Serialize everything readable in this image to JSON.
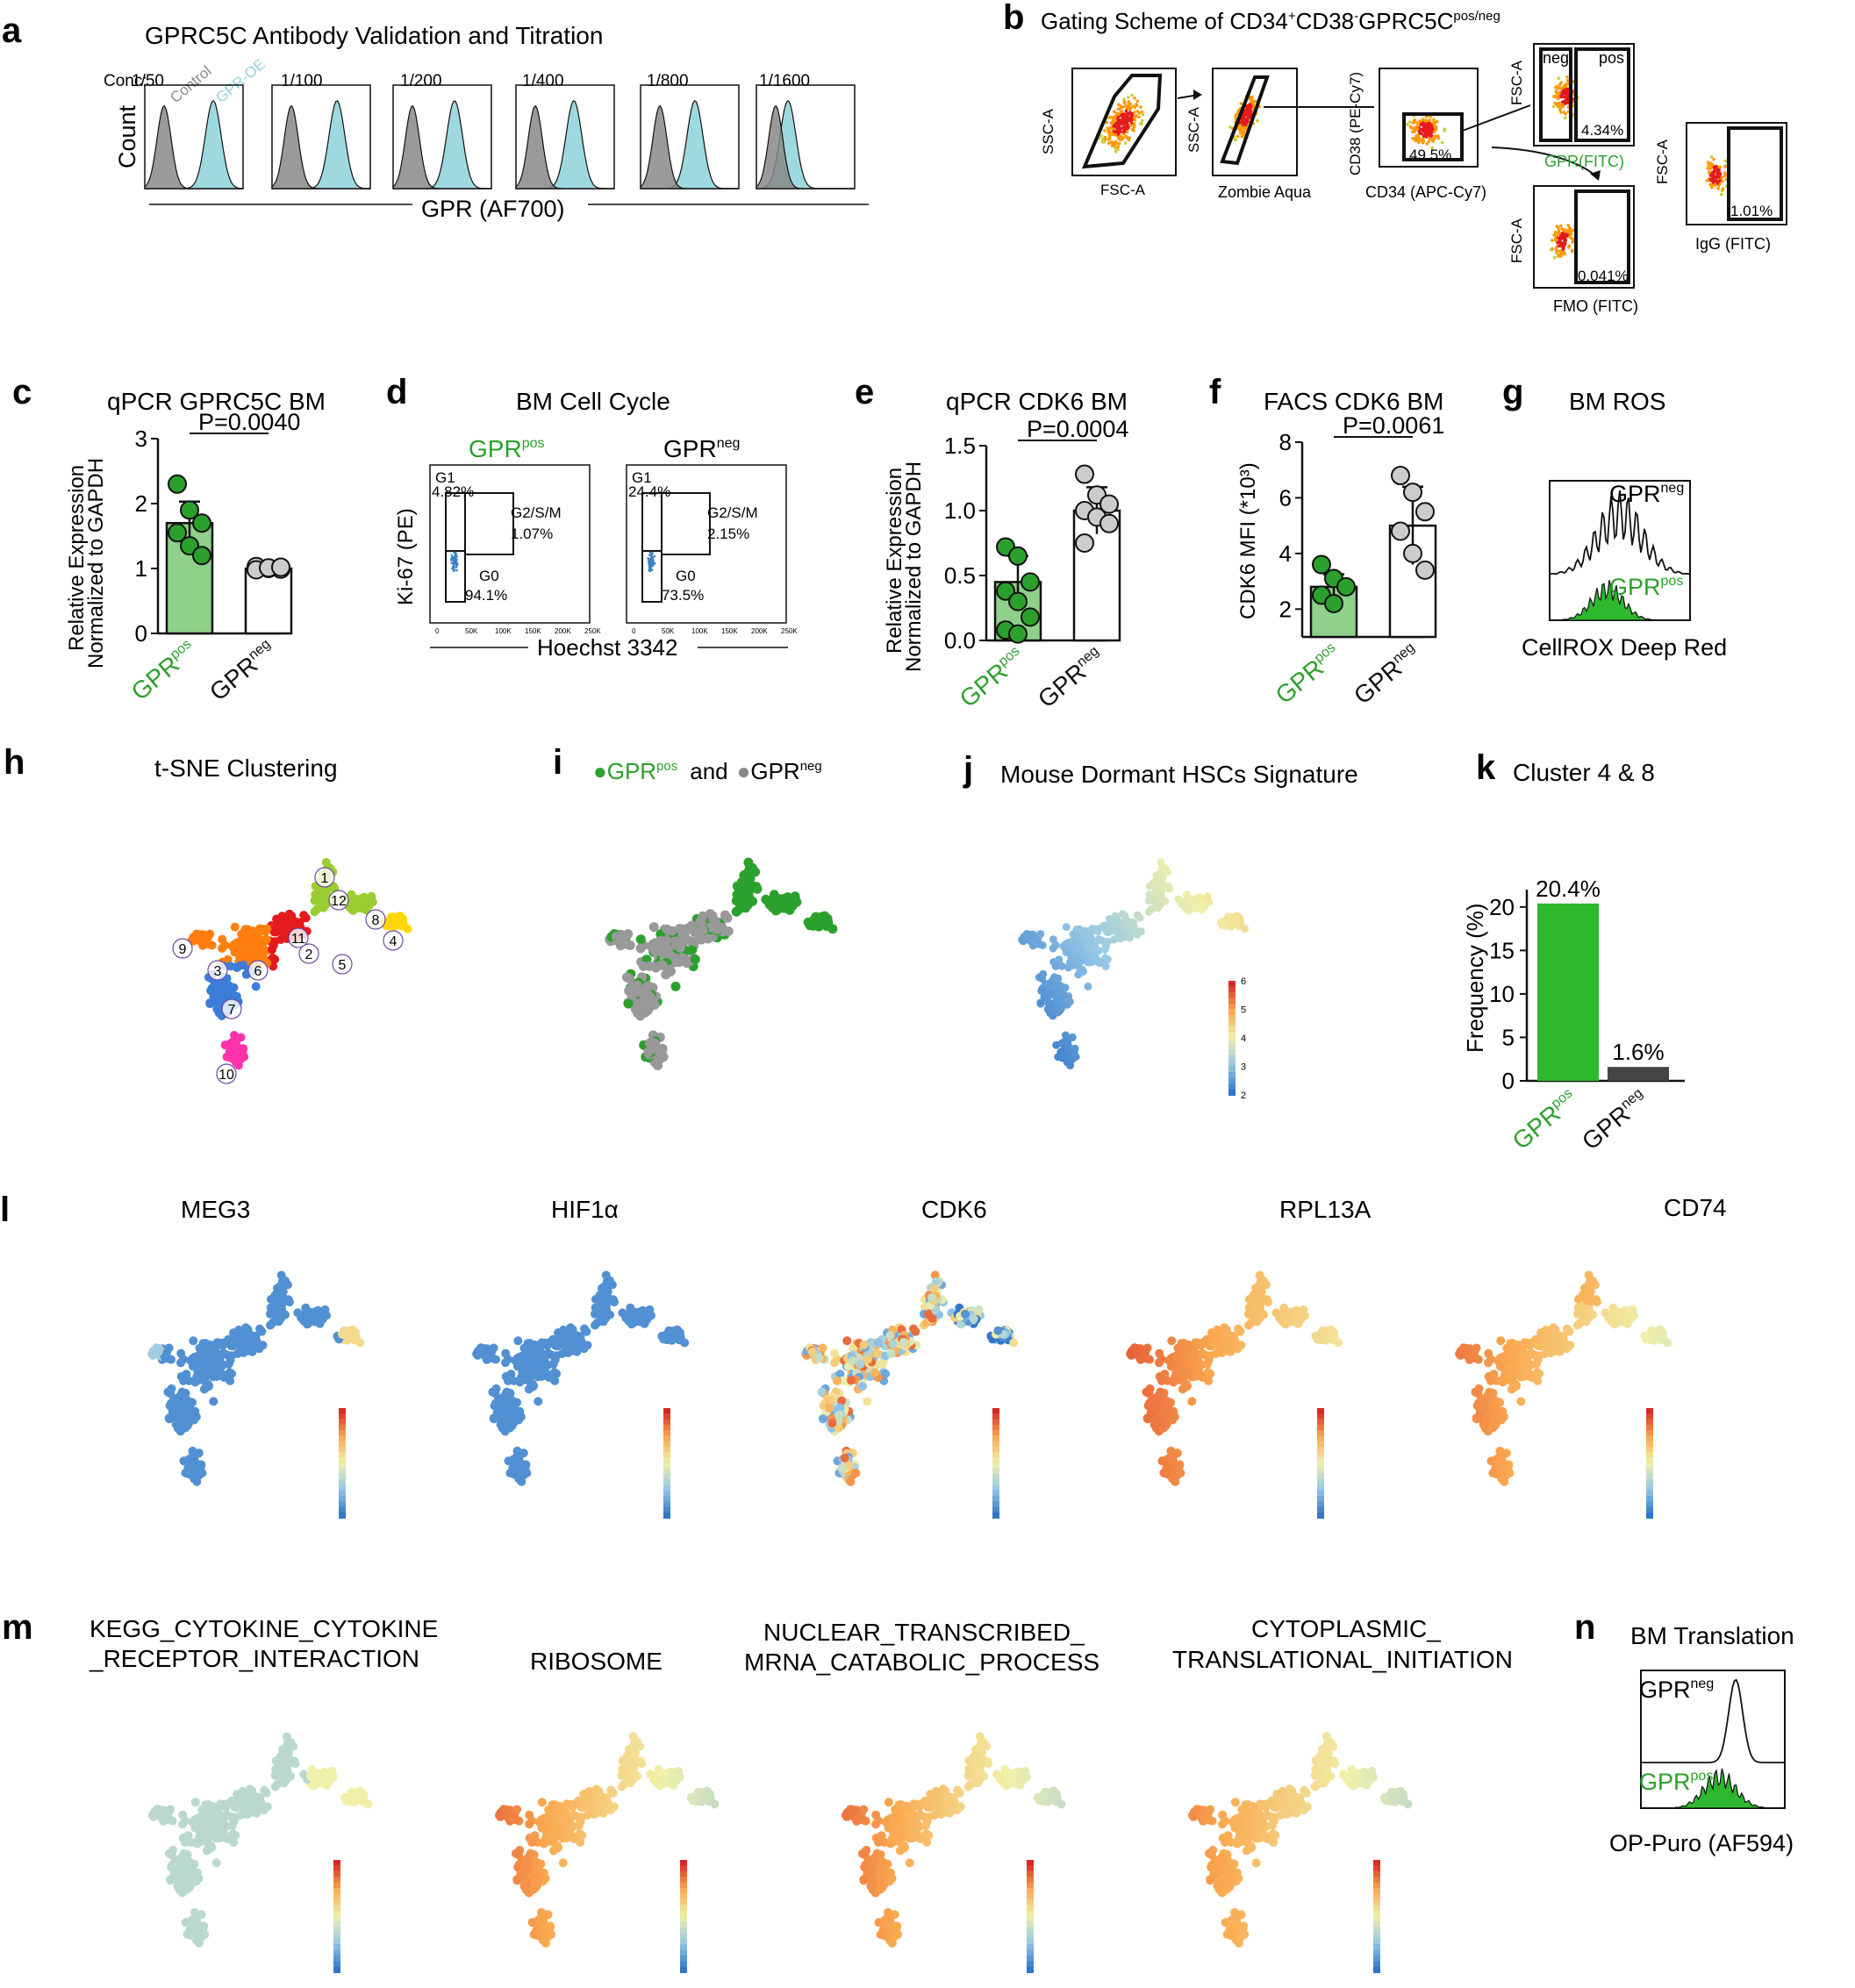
{
  "colors": {
    "gpr_pos": "#2ca02c",
    "gpr_neg": "#555555",
    "control": "#888888",
    "gpr_oe": "#9ed9df"
  },
  "labels": {
    "a": "a",
    "b": "b",
    "c": "c",
    "d": "d",
    "e": "e",
    "f": "f",
    "g": "g",
    "h": "h",
    "i": "i",
    "j": "j",
    "k": "k",
    "l": "l",
    "m": "m",
    "n": "n"
  },
  "panel_a": {
    "title": "GPRC5C Antibody Validation and Titration",
    "conc_prefix": "Conc:",
    "concentrations": [
      "1/50",
      "1/100",
      "1/200",
      "1/400",
      "1/800",
      "1/1600"
    ],
    "legend_control": "Control",
    "legend_oe": "GPR-OE",
    "ylabel": "Count",
    "xlabel": "GPR (AF700)"
  },
  "panel_b": {
    "title_pre": "Gating Scheme of CD34",
    "title_sup1": "+",
    "title_mid": "CD38",
    "title_sup2": "-",
    "title_post": "GPRC5C",
    "title_sup3": "pos/neg",
    "p1_y": "SSC-A",
    "p1_x": "FSC-A",
    "p2_y": "SSC-A",
    "p2_x": "Zombie Aqua",
    "p3_y": "CD38 (PE-Cy7)",
    "p3_x": "CD34 (APC-Cy7)",
    "p3_pct": "49.5%",
    "p4_y": "FSC-A",
    "p4_x": "GPR(FITC)",
    "p4_neg": "neg",
    "p4_pos": "pos",
    "p4_pct": "4.34%",
    "p5_y": "FSC-A",
    "p5_x": "FMO (FITC)",
    "p5_pct": "0.041%",
    "p6_y": "FSC-A",
    "p6_x": "IgG (FITC)",
    "p6_pct": "1.01%"
  },
  "gpr": {
    "base": "GPR",
    "pos": "pos",
    "neg": "neg"
  },
  "panel_c": {
    "title": "qPCR GPRC5C BM",
    "pvalue": "P=0.0040",
    "ylabel1": "Relative Expression",
    "ylabel2": "Normalized to GAPDH",
    "yticks": [
      "0",
      "1",
      "2",
      "3"
    ]
  },
  "panel_d": {
    "title": "BM Cell Cycle",
    "ylabel": "Ki-67 (PE)",
    "xlabel": "Hoechst 3342",
    "xticks": [
      "0",
      "50K",
      "100K",
      "150K",
      "200K",
      "250K"
    ],
    "g1": "G1",
    "g2": "G2/S/M",
    "g0": "G0",
    "pos_g1": "4.82%",
    "pos_g2": "1.07%",
    "pos_g0": "94.1%",
    "neg_g1": "24.4%",
    "neg_g2": "2.15%",
    "neg_g0": "73.5%"
  },
  "panel_e": {
    "title": "qPCR CDK6 BM",
    "pvalue": "P=0.0004",
    "ylabel1": "Relative Expression",
    "ylabel2": "Normalized to GAPDH",
    "yticks": [
      "0.0",
      "0.5",
      "1.0",
      "1.5"
    ]
  },
  "panel_f": {
    "title": "FACS CDK6 BM",
    "pvalue": "P=0.0061",
    "ylabel": "CDK6 MFI (*10³)",
    "yticks": [
      "2",
      "4",
      "6",
      "8"
    ]
  },
  "panel_g": {
    "title": "BM ROS",
    "xlabel": "CellROX Deep Red"
  },
  "panel_h": {
    "title": "t-SNE Clustering",
    "clusters": [
      "1",
      "2",
      "3",
      "4",
      "5",
      "6",
      "7",
      "8",
      "9",
      "10",
      "11",
      "12"
    ]
  },
  "panel_i": {
    "bullet": "●",
    "and": "and"
  },
  "panel_j": {
    "title": "Mouse Dormant HSCs Signature",
    "scale": [
      "2",
      "3",
      "4",
      "5",
      "6"
    ]
  },
  "panel_k": {
    "title": "Cluster 4 & 8",
    "ylabel": "Frequency (%)",
    "yticks": [
      "0",
      "5",
      "10",
      "15",
      "20"
    ],
    "label_pos": "20.4%",
    "label_neg": "1.6%"
  },
  "panel_l": {
    "genes": [
      "MEG3",
      "HIF1α",
      "CDK6",
      "RPL13A",
      "CD74"
    ]
  },
  "panel_m": {
    "t1a": "KEGG_CYTOKINE_CYTOKINE",
    "t1b": "_RECEPTOR_INTERACTION",
    "t2": "RIBOSOME",
    "t3a": "NUCLEAR_TRANSCRIBED_",
    "t3b": "MRNA_CATABOLIC_PROCESS",
    "t4a": "CYTOPLASMIC_",
    "t4b": "TRANSLATIONAL_INITIATION"
  },
  "panel_n": {
    "title": "BM Translation",
    "xlabel": "OP-Puro (AF594)"
  },
  "chart_data": [
    {
      "panel": "c",
      "type": "bar",
      "title": "qPCR GPRC5C BM",
      "categories": [
        "GPRpos",
        "GPRneg"
      ],
      "values": [
        1.7,
        1.0
      ],
      "errors": [
        0.33,
        0.04
      ],
      "ylim": [
        0,
        3
      ],
      "points": [
        [
          2.3,
          1.9,
          1.7,
          1.55,
          1.35,
          1.2
        ],
        [
          1.03,
          1.0,
          0.99,
          0.98,
          1.01,
          1.02
        ]
      ]
    },
    {
      "panel": "e",
      "type": "bar",
      "title": "qPCR CDK6 BM",
      "categories": [
        "GPRpos",
        "GPRneg"
      ],
      "values": [
        0.45,
        1.0
      ],
      "errors": [
        0.2,
        0.18
      ],
      "ylim": [
        0,
        1.5
      ],
      "points": [
        [
          0.72,
          0.65,
          0.45,
          0.38,
          0.3,
          0.18,
          0.08,
          0.05
        ],
        [
          1.28,
          1.12,
          1.05,
          1.0,
          0.95,
          0.9,
          0.75
        ]
      ]
    },
    {
      "panel": "f",
      "type": "bar",
      "title": "FACS CDK6 BM",
      "categories": [
        "GPRpos",
        "GPRneg"
      ],
      "values": [
        2.8,
        5.0
      ],
      "errors": [
        0.45,
        1.4
      ],
      "ylim": [
        1,
        8
      ],
      "points": [
        [
          3.6,
          3.1,
          2.8,
          2.5,
          2.2
        ],
        [
          6.8,
          6.2,
          5.5,
          4.8,
          4.0,
          3.4
        ]
      ]
    },
    {
      "panel": "k",
      "type": "bar",
      "title": "Cluster 4 & 8",
      "categories": [
        "GPRpos",
        "GPRneg"
      ],
      "values": [
        20.4,
        1.6
      ],
      "ylim": [
        0,
        22
      ]
    }
  ]
}
